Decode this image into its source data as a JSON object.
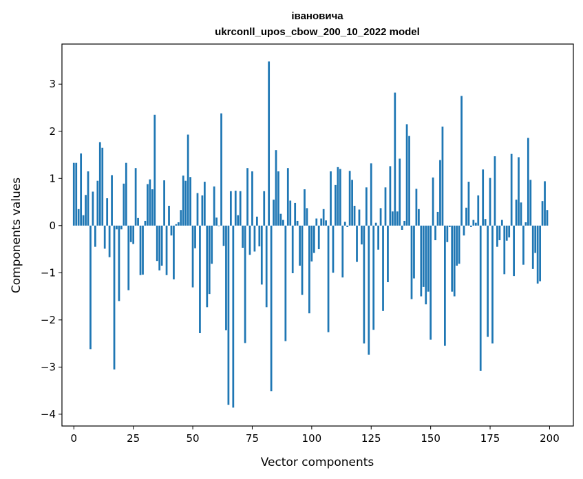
{
  "chart_data": {
    "type": "bar",
    "title_line1": "івановича",
    "title_line2": "ukrconll_upos_cbow_200_10_2022 model",
    "xlabel": "Vector components",
    "ylabel": "Components values",
    "xlim": [
      -5,
      210
    ],
    "ylim": [
      -4.25,
      3.85
    ],
    "xticks": [
      0,
      25,
      50,
      75,
      100,
      125,
      150,
      175,
      200
    ],
    "yticks": [
      3,
      2,
      1,
      0,
      -1,
      -2,
      -3,
      -4
    ],
    "bar_color": "#1f77b4",
    "series": [
      {
        "name": "components",
        "x_start": 0,
        "values": [
          1.33,
          1.33,
          0.35,
          1.53,
          0.22,
          0.65,
          1.15,
          -2.62,
          0.72,
          -0.45,
          0.95,
          1.77,
          1.65,
          -0.49,
          0.58,
          -0.67,
          1.07,
          -3.05,
          -0.08,
          -1.6,
          -0.08,
          0.89,
          1.33,
          -1.37,
          -0.35,
          -0.39,
          1.22,
          0.16,
          -1.05,
          -1.04,
          0.1,
          0.88,
          0.98,
          0.77,
          2.35,
          -0.75,
          -0.95,
          -0.85,
          0.96,
          -1.05,
          0.42,
          -0.21,
          -1.14,
          0.03,
          0.07,
          0.33,
          1.06,
          0.95,
          1.93,
          1.03,
          -1.31,
          -0.48,
          0.69,
          -2.28,
          0.64,
          0.93,
          -1.73,
          -1.45,
          -0.81,
          0.83,
          0.17,
          -0.01,
          2.38,
          -0.43,
          -2.22,
          -3.8,
          0.73,
          -3.86,
          0.74,
          0.22,
          0.73,
          -0.47,
          -2.49,
          1.22,
          -0.62,
          1.15,
          -0.55,
          0.19,
          -0.44,
          -1.25,
          0.73,
          -1.73,
          3.48,
          -3.51,
          0.55,
          1.6,
          1.15,
          0.25,
          0.12,
          -2.45,
          1.22,
          0.53,
          -1.01,
          0.48,
          0.1,
          -0.85,
          -1.47,
          0.77,
          0.37,
          -1.86,
          -0.76,
          -0.58,
          0.15,
          -0.5,
          0.15,
          0.35,
          0.11,
          -2.26,
          1.15,
          -1.0,
          0.86,
          1.24,
          1.2,
          -1.1,
          0.08,
          -0.03,
          1.16,
          0.97,
          0.42,
          -0.77,
          0.34,
          -0.4,
          -2.5,
          0.81,
          -2.74,
          1.32,
          -2.21,
          0.06,
          -0.51,
          0.37,
          -1.81,
          0.81,
          -1.2,
          1.26,
          0.3,
          2.82,
          0.3,
          1.42,
          -0.09,
          0.1,
          2.15,
          1.9,
          -1.56,
          -1.12,
          0.78,
          0.35,
          -1.5,
          -1.3,
          -1.67,
          -1.4,
          -2.42,
          1.02,
          -0.31,
          0.29,
          1.39,
          2.1,
          -2.55,
          -0.35,
          -0.03,
          -1.4,
          -1.5,
          -0.85,
          -0.81,
          2.75,
          -0.21,
          0.38,
          0.93,
          -0.03,
          0.12,
          0.06,
          0.64,
          -3.08,
          1.19,
          0.14,
          -2.36,
          1.01,
          -2.5,
          1.47,
          -0.45,
          -0.31,
          0.12,
          -1.03,
          -0.32,
          -0.25,
          1.52,
          -1.07,
          0.55,
          1.45,
          0.49,
          -0.83,
          0.07,
          1.86,
          0.97,
          -0.92,
          -0.58,
          -1.23,
          -1.18,
          0.52,
          0.94,
          0.33
        ]
      }
    ]
  }
}
